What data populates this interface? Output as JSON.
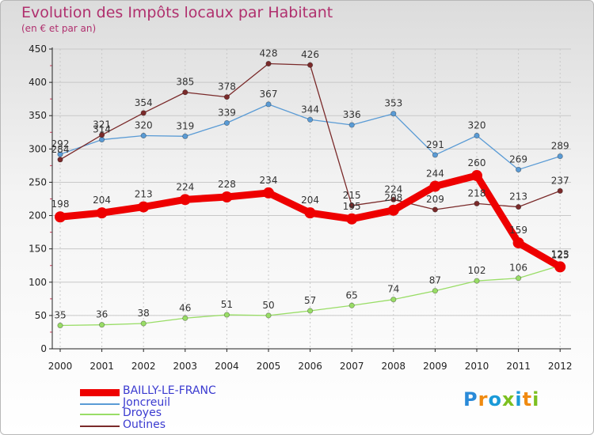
{
  "header": {
    "title": "Evolution des Impôts locaux par Habitant",
    "subtitle": "(en € et par an)"
  },
  "logo": {
    "text": "Proxiti"
  },
  "colors": {
    "title": "#b0306e",
    "legend_text": "#3a3ad0",
    "grid": "#c8c8c8",
    "axis": "#222222"
  },
  "chart_data": {
    "type": "line",
    "title": "Evolution des Impôts locaux par Habitant",
    "subtitle": "(en € et par an)",
    "xlabel": "",
    "ylabel": "",
    "ylim": [
      0,
      450
    ],
    "yticks": [
      0,
      50,
      100,
      150,
      200,
      250,
      300,
      350,
      400,
      450
    ],
    "categories": [
      "2000",
      "2001",
      "2002",
      "2003",
      "2004",
      "2005",
      "2006",
      "2007",
      "2008",
      "2009",
      "2010",
      "2011",
      "2012"
    ],
    "grid": true,
    "legend_position": "bottom-left",
    "series": [
      {
        "name": "BAILLY-LE-FRANC",
        "color": "#ee0000",
        "values": [
          198,
          204,
          213,
          224,
          228,
          234,
          204,
          195,
          208,
          244,
          260,
          159,
          123
        ]
      },
      {
        "name": "Joncreuil",
        "color": "#5a9bd5",
        "values": [
          292,
          314,
          320,
          319,
          339,
          367,
          344,
          336,
          353,
          291,
          320,
          269,
          289
        ]
      },
      {
        "name": "Droyes",
        "color": "#99dd66",
        "values": [
          35,
          36,
          38,
          46,
          51,
          50,
          57,
          65,
          74,
          87,
          102,
          106,
          125
        ]
      },
      {
        "name": "Outines",
        "color": "#7a2a2a",
        "values": [
          284,
          321,
          354,
          385,
          378,
          428,
          426,
          215,
          224,
          209,
          218,
          213,
          237
        ]
      }
    ]
  }
}
